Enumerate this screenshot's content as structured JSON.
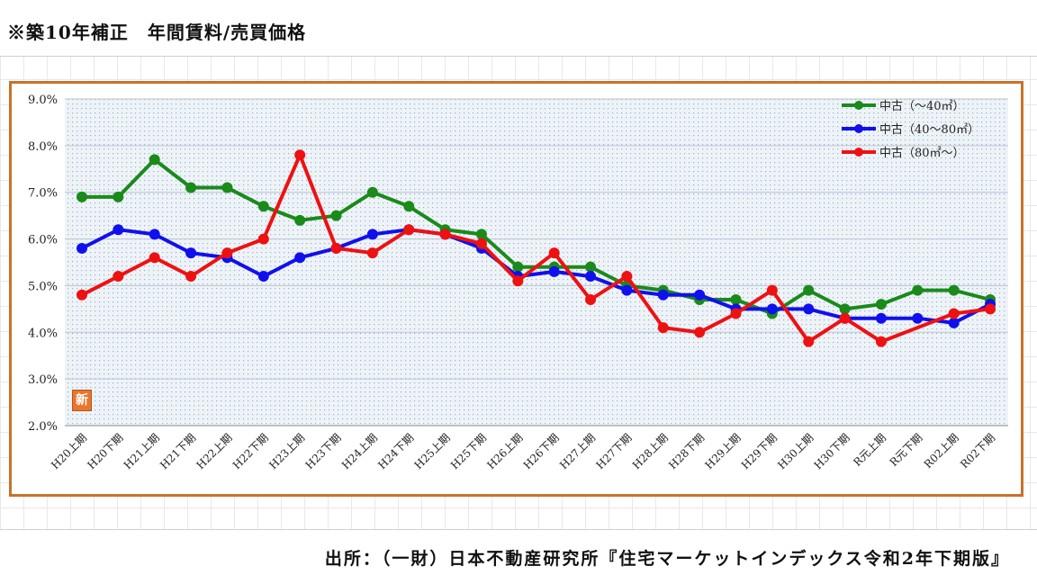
{
  "header": {
    "title": "※築10年補正　年間賃料/売買価格"
  },
  "footer": {
    "source": "出所：（一財）日本不動産研究所『住宅マーケットインデックス令和2年下期版』"
  },
  "stamp": {
    "label": "新"
  },
  "chart_data": {
    "type": "line",
    "title": "",
    "xlabel": "",
    "ylabel": "",
    "ylim": [
      2.0,
      9.0
    ],
    "yticks": [
      "2.0%",
      "3.0%",
      "4.0%",
      "5.0%",
      "6.0%",
      "7.0%",
      "8.0%",
      "9.0%"
    ],
    "grid": true,
    "legend_position": "top-right",
    "categories": [
      "H20上期",
      "H20下期",
      "H21上期",
      "H21下期",
      "H22上期",
      "H22下期",
      "H23上期",
      "H23下期",
      "H24上期",
      "H24下期",
      "H25上期",
      "H25下期",
      "H26上期",
      "H26下期",
      "H27上期",
      "H27下期",
      "H28上期",
      "H28下期",
      "H29上期",
      "H29下期",
      "H30上期",
      "H30下期",
      "R元上期",
      "R元下期",
      "R02上期",
      "R02下期"
    ],
    "series": [
      {
        "name": "中古（～40㎡）",
        "color": "#1a8a1a",
        "values": [
          6.9,
          6.9,
          7.7,
          7.1,
          7.1,
          6.7,
          6.4,
          6.5,
          7.0,
          6.7,
          6.2,
          6.1,
          5.4,
          5.4,
          5.4,
          5.0,
          4.9,
          4.7,
          4.7,
          4.4,
          4.9,
          4.5,
          4.6,
          4.9,
          4.9,
          4.7
        ]
      },
      {
        "name": "中古（40～80㎡）",
        "color": "#1010ee",
        "values": [
          5.8,
          6.2,
          6.1,
          5.7,
          5.6,
          5.2,
          5.6,
          5.8,
          6.1,
          6.2,
          6.1,
          5.8,
          5.2,
          5.3,
          5.2,
          4.9,
          4.8,
          4.8,
          4.5,
          4.5,
          4.5,
          4.3,
          4.3,
          4.3,
          4.2,
          4.6
        ]
      },
      {
        "name": "中古（80㎡～）",
        "color": "#ee1111",
        "values": [
          4.8,
          5.2,
          5.6,
          5.2,
          5.7,
          6.0,
          7.8,
          5.8,
          5.7,
          6.2,
          6.1,
          5.9,
          5.1,
          5.7,
          4.7,
          5.2,
          4.1,
          4.0,
          4.4,
          4.9,
          3.8,
          4.3,
          3.8,
          null,
          4.4,
          4.5
        ]
      }
    ]
  }
}
